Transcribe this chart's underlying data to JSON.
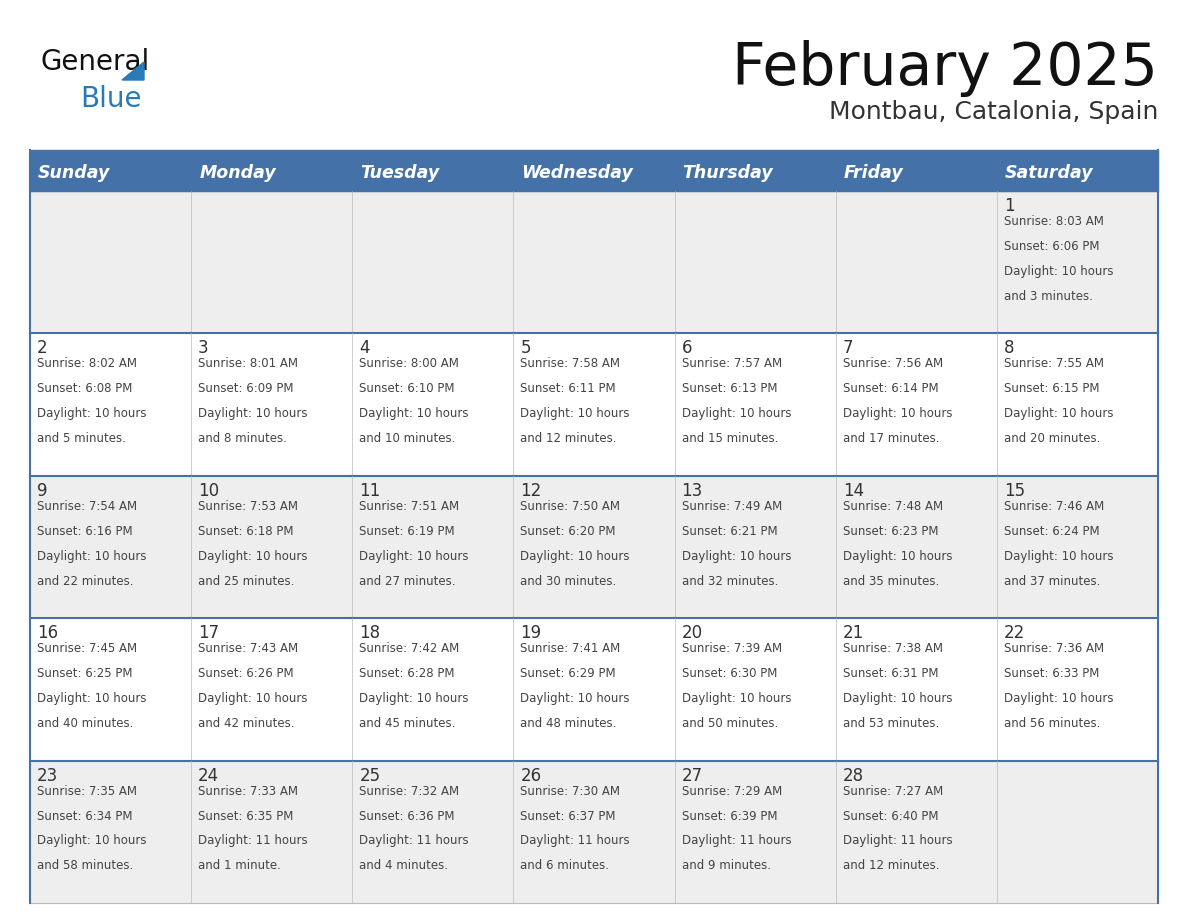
{
  "title": "February 2025",
  "subtitle": "Montbau, Catalonia, Spain",
  "header_bg": "#4472a8",
  "header_text": "#ffffff",
  "day_headers": [
    "Sunday",
    "Monday",
    "Tuesday",
    "Wednesday",
    "Thursday",
    "Friday",
    "Saturday"
  ],
  "odd_row_bg": "#eeeeee",
  "even_row_bg": "#ffffff",
  "border_color": "#4472a8",
  "date_color": "#333333",
  "info_color": "#444444",
  "title_color": "#111111",
  "subtitle_color": "#333333",
  "logo_general_color": "#111111",
  "logo_blue_color": "#2a7ab8",
  "cells": [
    {
      "day": 1,
      "col": 6,
      "row": 0,
      "sunrise": "8:03 AM",
      "sunset": "6:06 PM",
      "daylight": "10 hours and 3 minutes."
    },
    {
      "day": 2,
      "col": 0,
      "row": 1,
      "sunrise": "8:02 AM",
      "sunset": "6:08 PM",
      "daylight": "10 hours and 5 minutes."
    },
    {
      "day": 3,
      "col": 1,
      "row": 1,
      "sunrise": "8:01 AM",
      "sunset": "6:09 PM",
      "daylight": "10 hours and 8 minutes."
    },
    {
      "day": 4,
      "col": 2,
      "row": 1,
      "sunrise": "8:00 AM",
      "sunset": "6:10 PM",
      "daylight": "10 hours and 10 minutes."
    },
    {
      "day": 5,
      "col": 3,
      "row": 1,
      "sunrise": "7:58 AM",
      "sunset": "6:11 PM",
      "daylight": "10 hours and 12 minutes."
    },
    {
      "day": 6,
      "col": 4,
      "row": 1,
      "sunrise": "7:57 AM",
      "sunset": "6:13 PM",
      "daylight": "10 hours and 15 minutes."
    },
    {
      "day": 7,
      "col": 5,
      "row": 1,
      "sunrise": "7:56 AM",
      "sunset": "6:14 PM",
      "daylight": "10 hours and 17 minutes."
    },
    {
      "day": 8,
      "col": 6,
      "row": 1,
      "sunrise": "7:55 AM",
      "sunset": "6:15 PM",
      "daylight": "10 hours and 20 minutes."
    },
    {
      "day": 9,
      "col": 0,
      "row": 2,
      "sunrise": "7:54 AM",
      "sunset": "6:16 PM",
      "daylight": "10 hours and 22 minutes."
    },
    {
      "day": 10,
      "col": 1,
      "row": 2,
      "sunrise": "7:53 AM",
      "sunset": "6:18 PM",
      "daylight": "10 hours and 25 minutes."
    },
    {
      "day": 11,
      "col": 2,
      "row": 2,
      "sunrise": "7:51 AM",
      "sunset": "6:19 PM",
      "daylight": "10 hours and 27 minutes."
    },
    {
      "day": 12,
      "col": 3,
      "row": 2,
      "sunrise": "7:50 AM",
      "sunset": "6:20 PM",
      "daylight": "10 hours and 30 minutes."
    },
    {
      "day": 13,
      "col": 4,
      "row": 2,
      "sunrise": "7:49 AM",
      "sunset": "6:21 PM",
      "daylight": "10 hours and 32 minutes."
    },
    {
      "day": 14,
      "col": 5,
      "row": 2,
      "sunrise": "7:48 AM",
      "sunset": "6:23 PM",
      "daylight": "10 hours and 35 minutes."
    },
    {
      "day": 15,
      "col": 6,
      "row": 2,
      "sunrise": "7:46 AM",
      "sunset": "6:24 PM",
      "daylight": "10 hours and 37 minutes."
    },
    {
      "day": 16,
      "col": 0,
      "row": 3,
      "sunrise": "7:45 AM",
      "sunset": "6:25 PM",
      "daylight": "10 hours and 40 minutes."
    },
    {
      "day": 17,
      "col": 1,
      "row": 3,
      "sunrise": "7:43 AM",
      "sunset": "6:26 PM",
      "daylight": "10 hours and 42 minutes."
    },
    {
      "day": 18,
      "col": 2,
      "row": 3,
      "sunrise": "7:42 AM",
      "sunset": "6:28 PM",
      "daylight": "10 hours and 45 minutes."
    },
    {
      "day": 19,
      "col": 3,
      "row": 3,
      "sunrise": "7:41 AM",
      "sunset": "6:29 PM",
      "daylight": "10 hours and 48 minutes."
    },
    {
      "day": 20,
      "col": 4,
      "row": 3,
      "sunrise": "7:39 AM",
      "sunset": "6:30 PM",
      "daylight": "10 hours and 50 minutes."
    },
    {
      "day": 21,
      "col": 5,
      "row": 3,
      "sunrise": "7:38 AM",
      "sunset": "6:31 PM",
      "daylight": "10 hours and 53 minutes."
    },
    {
      "day": 22,
      "col": 6,
      "row": 3,
      "sunrise": "7:36 AM",
      "sunset": "6:33 PM",
      "daylight": "10 hours and 56 minutes."
    },
    {
      "day": 23,
      "col": 0,
      "row": 4,
      "sunrise": "7:35 AM",
      "sunset": "6:34 PM",
      "daylight": "10 hours and 58 minutes."
    },
    {
      "day": 24,
      "col": 1,
      "row": 4,
      "sunrise": "7:33 AM",
      "sunset": "6:35 PM",
      "daylight": "11 hours and 1 minute."
    },
    {
      "day": 25,
      "col": 2,
      "row": 4,
      "sunrise": "7:32 AM",
      "sunset": "6:36 PM",
      "daylight": "11 hours and 4 minutes."
    },
    {
      "day": 26,
      "col": 3,
      "row": 4,
      "sunrise": "7:30 AM",
      "sunset": "6:37 PM",
      "daylight": "11 hours and 6 minutes."
    },
    {
      "day": 27,
      "col": 4,
      "row": 4,
      "sunrise": "7:29 AM",
      "sunset": "6:39 PM",
      "daylight": "11 hours and 9 minutes."
    },
    {
      "day": 28,
      "col": 5,
      "row": 4,
      "sunrise": "7:27 AM",
      "sunset": "6:40 PM",
      "daylight": "11 hours and 12 minutes."
    }
  ]
}
